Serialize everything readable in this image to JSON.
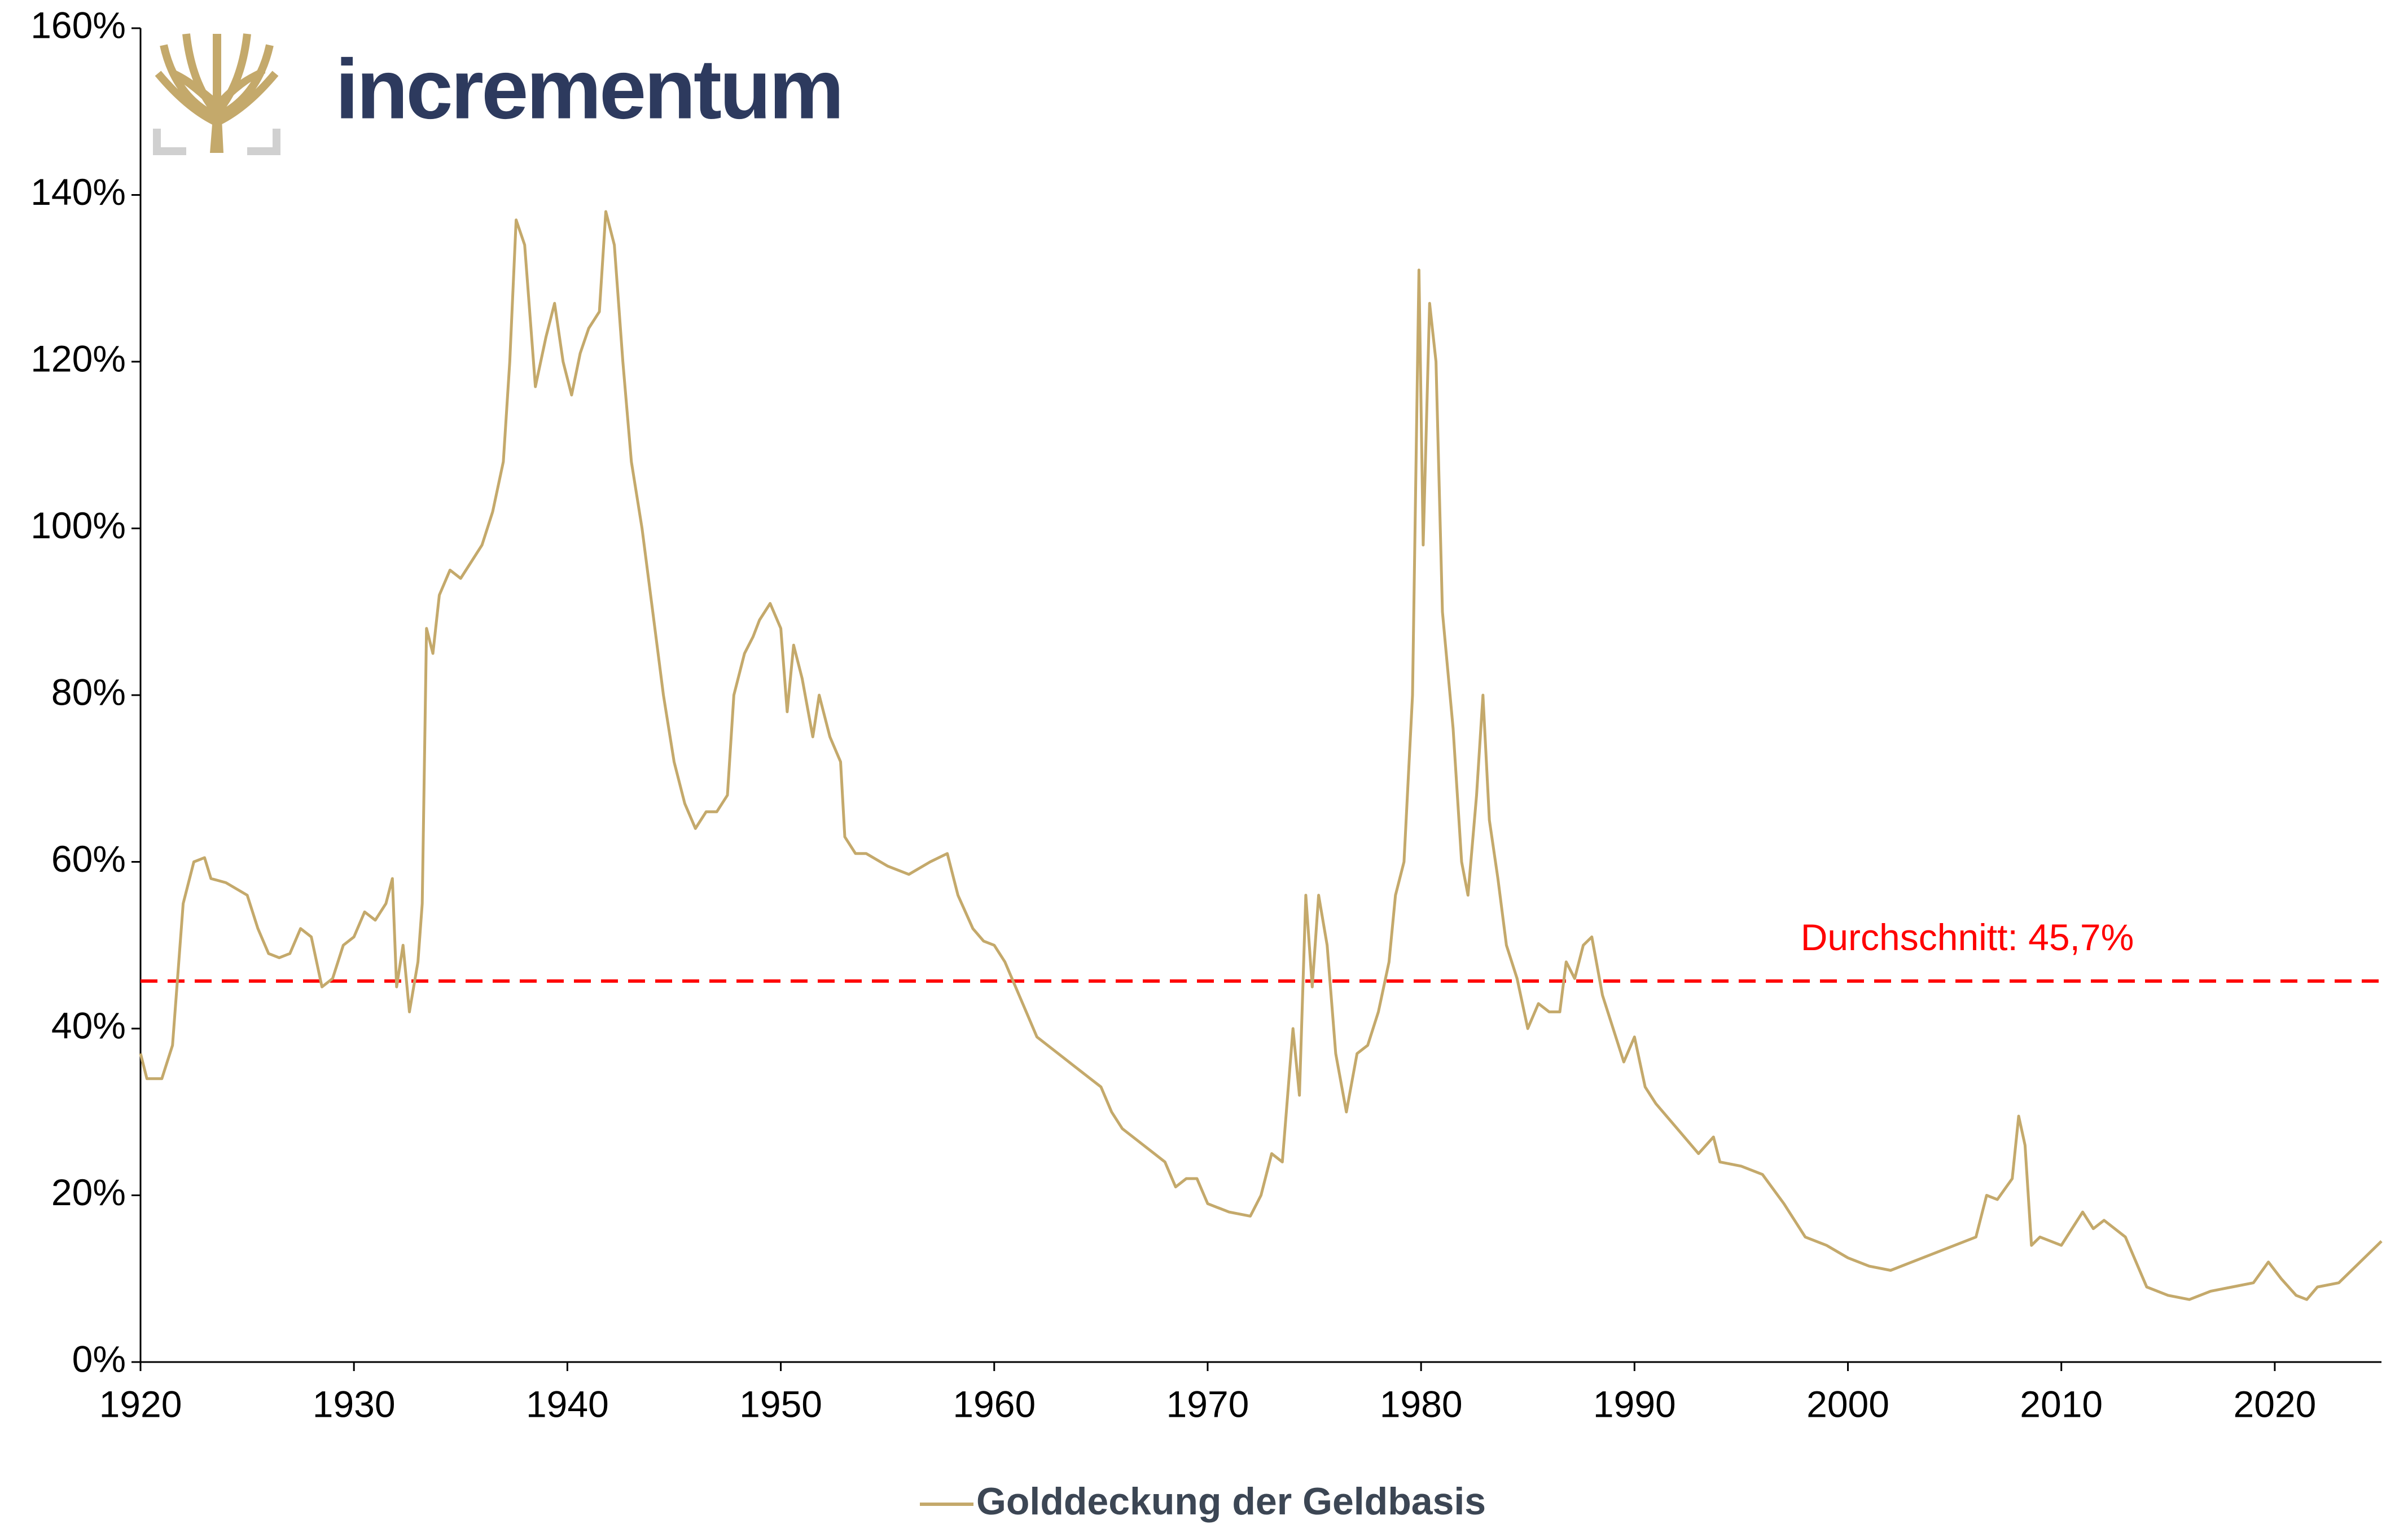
{
  "chart_data": {
    "type": "line",
    "logo": "incrementum",
    "x": [
      1920.0,
      1920.3,
      1921,
      1921.5,
      1922,
      1922.5,
      1923,
      1923.3,
      1924,
      1925,
      1925.5,
      1926,
      1926.5,
      1927,
      1927.5,
      1928,
      1928.5,
      1929,
      1929.5,
      1930,
      1930.5,
      1931,
      1931.5,
      1931.8,
      1932,
      1932.3,
      1932.6,
      1933,
      1933.2,
      1933.4,
      1933.7,
      1934,
      1934.5,
      1935,
      1935.5,
      1936,
      1936.5,
      1937,
      1937.3,
      1937.6,
      1938,
      1938.5,
      1939,
      1939.4,
      1939.8,
      1940.2,
      1940.6,
      1941,
      1941.5,
      1941.8,
      1942.2,
      1942.6,
      1943,
      1943.5,
      1944,
      1944.5,
      1945,
      1945.5,
      1946,
      1946.5,
      1947,
      1947.5,
      1947.8,
      1948.3,
      1948.7,
      1949,
      1949.5,
      1950,
      1950.3,
      1950.6,
      1951,
      1951.5,
      1951.8,
      1952.3,
      1952.8,
      1953,
      1953.5,
      1954,
      1955,
      1956,
      1957,
      1957.8,
      1958.3,
      1959,
      1959.5,
      1960,
      1960.5,
      1961,
      1961.5,
      1962,
      1963,
      1964,
      1965,
      1965.5,
      1966,
      1967,
      1968,
      1968.5,
      1969,
      1969.5,
      1970,
      1971,
      1972,
      1972.5,
      1973,
      1973.5,
      1974,
      1974.3,
      1974.6,
      1974.9,
      1975.2,
      1975.6,
      1976,
      1976.5,
      1977,
      1977.5,
      1978,
      1978.5,
      1978.8,
      1979.2,
      1979.6,
      1979.9,
      1980.1,
      1980.4,
      1980.7,
      1981,
      1981.5,
      1981.9,
      1982.2,
      1982.6,
      1982.9,
      1983.2,
      1983.6,
      1984,
      1984.5,
      1985,
      1985.5,
      1986,
      1986.5,
      1986.8,
      1987.2,
      1987.6,
      1988,
      1988.5,
      1989,
      1989.5,
      1990,
      1990.5,
      1991,
      1992,
      1993,
      1993.7,
      1994,
      1995,
      1996,
      1997,
      1998,
      1999,
      2000,
      2001,
      2002,
      2003,
      2004,
      2005,
      2006,
      2006.5,
      2007,
      2007.7,
      2008,
      2008.3,
      2008.6,
      2009,
      2010,
      2010.5,
      2011,
      2011.5,
      2012,
      2013,
      2014,
      2015,
      2016,
      2017,
      2018,
      2019,
      2019.7,
      2020.3,
      2021,
      2021.5,
      2022,
      2023,
      2024,
      2025
    ],
    "series": [
      {
        "name": "Golddeckung der Geldbasis",
        "color": "#c4a96b",
        "values": [
          37,
          34,
          34,
          38,
          55,
          60,
          60.5,
          58,
          57.5,
          56,
          52,
          49,
          48.5,
          49,
          52,
          51,
          45,
          46,
          50,
          51,
          54,
          53,
          55,
          58,
          45,
          50,
          42,
          48,
          55,
          88,
          85,
          92,
          95,
          94,
          96,
          98,
          102,
          108,
          120,
          137,
          134,
          117,
          123,
          127,
          120,
          116,
          121,
          124,
          126,
          138,
          134,
          120,
          108,
          100,
          90,
          80,
          72,
          67,
          64,
          66,
          66,
          68,
          80,
          85,
          87,
          89,
          91,
          88,
          78,
          86,
          82,
          75,
          80,
          75,
          72,
          63,
          61,
          61,
          59.5,
          58.5,
          60,
          61,
          56,
          52,
          50.5,
          50,
          48,
          45,
          42,
          39,
          37,
          35,
          33,
          30,
          28,
          26,
          24,
          21,
          22,
          22,
          19,
          18,
          17.5,
          20,
          25,
          24,
          40,
          32,
          56,
          45,
          56,
          50,
          37,
          30,
          37,
          38,
          42,
          48,
          56,
          60,
          80,
          131,
          98,
          127,
          120,
          90,
          76,
          60,
          56,
          68,
          80,
          65,
          58,
          50,
          46,
          40,
          43,
          42,
          42,
          48,
          46,
          50,
          51,
          44,
          40,
          36,
          39,
          33,
          31,
          28,
          25,
          27,
          24,
          23.5,
          22.5,
          19,
          15,
          14,
          12.5,
          11.5,
          11,
          12,
          13,
          14,
          15,
          20,
          19.5,
          22,
          29.5,
          26,
          14,
          15,
          14,
          16,
          18,
          16,
          17,
          15,
          9,
          8,
          7.5,
          8.5,
          9,
          9.5,
          12,
          10,
          8,
          7.5,
          9,
          9.5,
          12,
          14.5
        ]
      }
    ],
    "average": {
      "value": 45.7,
      "label": "Durchschnitt: 45,7%",
      "color": "#ff0000"
    },
    "xlim": [
      1920,
      2025
    ],
    "xticks": [
      1920,
      1930,
      1940,
      1950,
      1960,
      1970,
      1980,
      1990,
      2000,
      2010,
      2020
    ],
    "ylim": [
      0,
      160
    ],
    "yticks": [
      {
        "value": 0,
        "label": "0%"
      },
      {
        "value": 20,
        "label": "20%"
      },
      {
        "value": 40,
        "label": "40%"
      },
      {
        "value": 60,
        "label": "60%"
      },
      {
        "value": 80,
        "label": "80%"
      },
      {
        "value": 100,
        "label": "100%"
      },
      {
        "value": 120,
        "label": "120%"
      },
      {
        "value": 140,
        "label": "140%"
      },
      {
        "value": 160,
        "label": "160%"
      }
    ],
    "legend": "bottom"
  }
}
